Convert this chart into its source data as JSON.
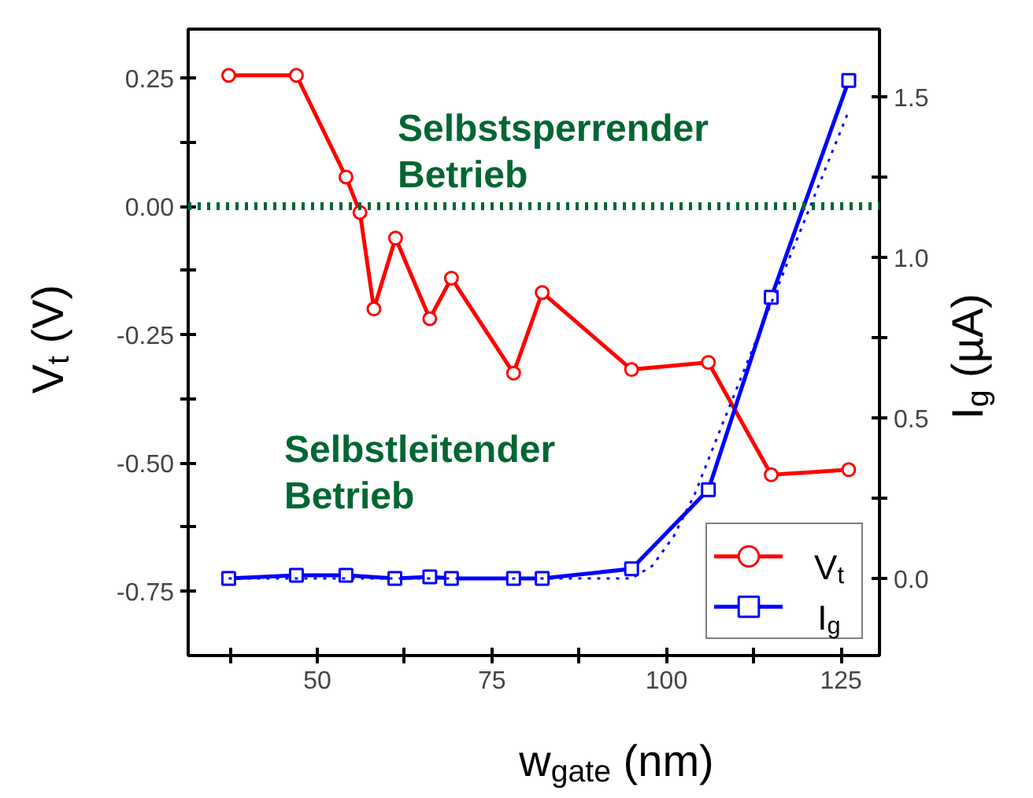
{
  "chart_data": {
    "type": "line",
    "xlabel": "w$_{gate}$ (nm)",
    "ylabel": "V$_{t}$ (V)",
    "y2label": "I$_{g}$ (µA)",
    "xlim": [
      31.5,
      130.5
    ],
    "xticks": [
      {
        "value": 37.5,
        "label": null
      },
      50,
      {
        "value": 62.5,
        "label": null
      },
      75,
      {
        "value": 87.5,
        "label": null
      },
      100,
      {
        "value": 112.5,
        "label": null
      },
      125
    ],
    "ylim": [
      -0.875,
      0.345
    ],
    "yticks": [
      {
        "value": -0.75,
        "label": "-0.75"
      },
      {
        "value": -0.625,
        "label": null
      },
      {
        "value": -0.5,
        "label": "-0.50"
      },
      {
        "value": -0.375,
        "label": null
      },
      {
        "value": -0.25,
        "label": "-0.25"
      },
      {
        "value": -0.125,
        "label": null
      },
      {
        "value": 0,
        "label": "0.00"
      },
      {
        "value": 0.125,
        "label": null
      },
      0.25
    ],
    "y2lim": [
      -0.24,
      1.71
    ],
    "y2ticks": [
      {
        "value": 0,
        "label": "0.0"
      },
      {
        "value": 0.25,
        "label": null
      },
      0.5,
      {
        "value": 0.75,
        "label": null
      },
      {
        "value": 1,
        "label": "1.0"
      },
      {
        "value": 1.25,
        "label": null
      },
      1.5
    ],
    "grid": false,
    "legend": "bottom right",
    "line_style": "solid",
    "annotations": [
      "Selbstsperrender\nBetrieb",
      "Selbstleitender\nBetrieb"
    ],
    "ref_lines": [
      {
        "axis": "y",
        "value": 0,
        "label": null,
        "color": "#006633",
        "line_style": "dotted"
      }
    ],
    "series": [
      {
        "name": "V$_{t}$",
        "color": "#ff0000",
        "marker": "circle",
        "x": [
          37.3,
          47,
          54.1,
          56.1,
          58.1,
          61.2,
          66.1,
          69.2,
          78.1,
          82.2,
          95,
          106,
          115,
          126.1
        ],
        "values": [
          0.255,
          0.255,
          0.057,
          -0.012,
          -0.2,
          -0.062,
          -0.219,
          -0.14,
          -0.325,
          -0.168,
          -0.318,
          -0.304,
          -0.523,
          -0.513
        ]
      },
      {
        "name": "I$_{g}$",
        "color": "#0000ff",
        "marker": "square",
        "axis": "y2",
        "x": [
          37.3,
          47,
          54.1,
          61.1,
          66.1,
          69.2,
          78.1,
          82.2,
          95,
          106,
          115,
          126.1
        ],
        "values": [
          0,
          0.01,
          0.01,
          0,
          0.005,
          0,
          0,
          0,
          0.03,
          0.276,
          0.875,
          1.55
        ]
      },
      {
        "color": "#0000ff",
        "marker": "none",
        "axis": "y2",
        "line_style": "dotted",
        "x": [
          37.3,
          95,
          98,
          101,
          104,
          108,
          126
        ],
        "values": [
          0,
          0,
          0.04,
          0.13,
          0.26,
          0.48,
          1.45
        ]
      }
    ]
  }
}
